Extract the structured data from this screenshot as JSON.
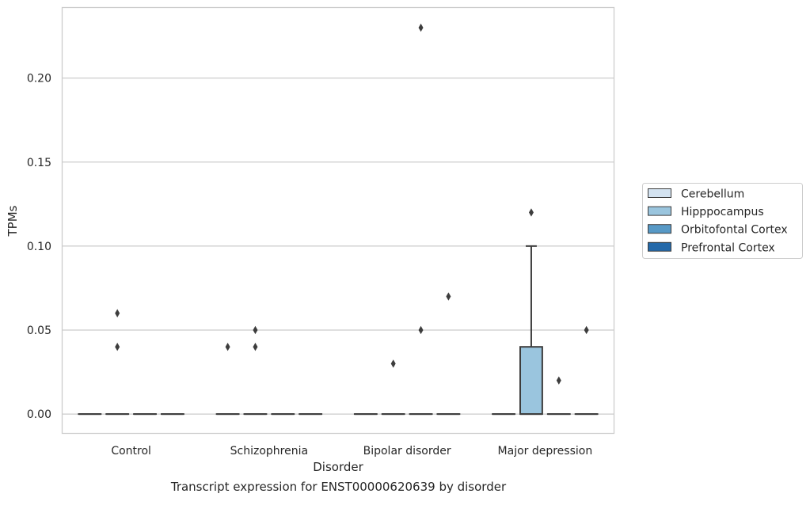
{
  "chart_data": {
    "type": "box",
    "xlabel": "Disorder",
    "ylabel": "TPMs",
    "caption": "Transcript expression for ENST00000620639 by disorder",
    "categories": [
      "Control",
      "Schizophrenia",
      "Bipolar disorder",
      "Major depression"
    ],
    "ylim": [
      -0.0115,
      0.242
    ],
    "yticks": [
      0.0,
      0.05,
      0.1,
      0.15,
      0.2
    ],
    "ytick_labels": [
      "0.00",
      "0.05",
      "0.10",
      "0.15",
      "0.20"
    ],
    "grid": "horizontal",
    "legend_position": "right",
    "series": [
      {
        "name": "Cerebellum",
        "color": "#d4e3f1",
        "boxes": [
          {
            "q1": 0,
            "median": 0,
            "q3": 0,
            "whisker_low": 0,
            "whisker_high": 0,
            "outliers": []
          },
          {
            "q1": 0,
            "median": 0,
            "q3": 0,
            "whisker_low": 0,
            "whisker_high": 0,
            "outliers": [
              0.04
            ]
          },
          {
            "q1": 0,
            "median": 0,
            "q3": 0,
            "whisker_low": 0,
            "whisker_high": 0,
            "outliers": []
          },
          {
            "q1": 0,
            "median": 0,
            "q3": 0,
            "whisker_low": 0,
            "whisker_high": 0,
            "outliers": []
          }
        ]
      },
      {
        "name": "Hipppocampus",
        "color": "#9ac5de",
        "boxes": [
          {
            "q1": 0,
            "median": 0,
            "q3": 0,
            "whisker_low": 0,
            "whisker_high": 0,
            "outliers": [
              0.06,
              0.04
            ]
          },
          {
            "q1": 0,
            "median": 0,
            "q3": 0,
            "whisker_low": 0,
            "whisker_high": 0,
            "outliers": [
              0.05,
              0.04
            ]
          },
          {
            "q1": 0,
            "median": 0,
            "q3": 0,
            "whisker_low": 0,
            "whisker_high": 0,
            "outliers": [
              0.03
            ]
          },
          {
            "q1": 0,
            "median": 0,
            "q3": 0.04,
            "whisker_low": 0,
            "whisker_high": 0.1,
            "outliers": [
              0.12
            ]
          }
        ]
      },
      {
        "name": "Orbitofontal Cortex",
        "color": "#5799c6",
        "boxes": [
          {
            "q1": 0,
            "median": 0,
            "q3": 0,
            "whisker_low": 0,
            "whisker_high": 0,
            "outliers": []
          },
          {
            "q1": 0,
            "median": 0,
            "q3": 0,
            "whisker_low": 0,
            "whisker_high": 0,
            "outliers": []
          },
          {
            "q1": 0,
            "median": 0,
            "q3": 0,
            "whisker_low": 0,
            "whisker_high": 0,
            "outliers": [
              0.23,
              0.05
            ]
          },
          {
            "q1": 0,
            "median": 0,
            "q3": 0,
            "whisker_low": 0,
            "whisker_high": 0,
            "outliers": [
              0.02
            ]
          }
        ]
      },
      {
        "name": "Prefrontal Cortex",
        "color": "#2469a9",
        "boxes": [
          {
            "q1": 0,
            "median": 0,
            "q3": 0,
            "whisker_low": 0,
            "whisker_high": 0,
            "outliers": []
          },
          {
            "q1": 0,
            "median": 0,
            "q3": 0,
            "whisker_low": 0,
            "whisker_high": 0,
            "outliers": []
          },
          {
            "q1": 0,
            "median": 0,
            "q3": 0,
            "whisker_low": 0,
            "whisker_high": 0,
            "outliers": [
              0.07
            ]
          },
          {
            "q1": 0,
            "median": 0,
            "q3": 0,
            "whisker_low": 0,
            "whisker_high": 0,
            "outliers": [
              0.05
            ]
          }
        ]
      }
    ]
  }
}
